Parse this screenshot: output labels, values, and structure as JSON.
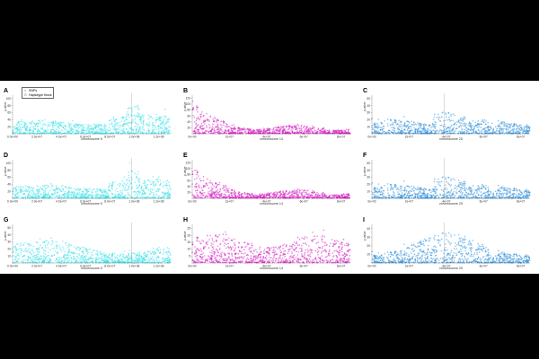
{
  "figure": {
    "legend": {
      "items": [
        {
          "label": "SNPs",
          "symbol": "circle"
        },
        {
          "label": "Haplotype block",
          "symbol": "triangle"
        }
      ]
    }
  },
  "chart_data": [
    {
      "letter": "A",
      "type": "scatter",
      "color": "#33e0e6",
      "ylabel": "p-value",
      "xlabel": "chromosome 5",
      "xticks": [
        "0.0e+00",
        "2.0e+07",
        "4.0e+07",
        "6.0e+07",
        "8.0e+07",
        "1.0e+08",
        "1.2e+08"
      ],
      "xtick_values": [
        0,
        20000000,
        40000000,
        60000000,
        80000000,
        100000000,
        120000000
      ],
      "xlim": [
        0,
        130000000
      ],
      "yticks": [
        "20",
        "40",
        "60",
        "80",
        "100"
      ],
      "ytick_values": [
        20,
        40,
        60,
        80,
        100
      ],
      "ylim": [
        0,
        110
      ],
      "profile": "right_peak",
      "threshold_x": 98000000,
      "show_legend": true
    },
    {
      "letter": "B",
      "type": "scatter",
      "color": "#d61ec2",
      "ylabel": "p-value",
      "xlabel": "chromosome 14",
      "xticks": [
        "0e+00",
        "2e+07",
        "4e+07",
        "6e+07",
        "8e+07"
      ],
      "xtick_values": [
        0,
        20000000,
        40000000,
        60000000,
        80000000
      ],
      "xlim": [
        0,
        85000000
      ],
      "yticks": [
        "20",
        "40",
        "60",
        "80",
        "100",
        "120"
      ],
      "ytick_values": [
        20,
        40,
        60,
        80,
        100,
        120
      ],
      "ylim": [
        0,
        130
      ],
      "profile": "left_decay",
      "threshold_x": null,
      "show_legend": false
    },
    {
      "letter": "C",
      "type": "scatter",
      "color": "#2f8fd8",
      "ylabel": "p-value",
      "xlabel": "chromosome 25",
      "xticks": [
        "0e+00",
        "2e+07",
        "4e+07",
        "6e+07",
        "8e+07"
      ],
      "xtick_values": [
        0,
        20000000,
        40000000,
        60000000,
        80000000
      ],
      "xlim": [
        0,
        85000000
      ],
      "yticks": [
        "10",
        "20",
        "30",
        "40",
        "50"
      ],
      "ytick_values": [
        10,
        20,
        30,
        40,
        50
      ],
      "ylim": [
        0,
        55
      ],
      "profile": "mid_peak",
      "threshold_x": 39000000,
      "show_legend": false
    },
    {
      "letter": "D",
      "type": "scatter",
      "color": "#33e0e6",
      "ylabel": "p-value",
      "xlabel": "chromosome 5",
      "xticks": [
        "0.0e+00",
        "2.0e+07",
        "4.0e+07",
        "6.0e+07",
        "8.0e+07",
        "1.0e+08",
        "1.2e+08"
      ],
      "xtick_values": [
        0,
        20000000,
        40000000,
        60000000,
        80000000,
        100000000,
        120000000
      ],
      "xlim": [
        0,
        130000000
      ],
      "yticks": [
        "20",
        "40",
        "60",
        "80",
        "100"
      ],
      "ytick_values": [
        20,
        40,
        60,
        80,
        100
      ],
      "ylim": [
        0,
        110
      ],
      "profile": "right_peak",
      "threshold_x": 98000000,
      "show_legend": false
    },
    {
      "letter": "E",
      "type": "scatter",
      "color": "#d61ec2",
      "ylabel": "p-value",
      "xlabel": "chromosome 14",
      "xticks": [
        "0e+00",
        "2e+07",
        "4e+07",
        "6e+07",
        "8e+07"
      ],
      "xtick_values": [
        0,
        20000000,
        40000000,
        60000000,
        80000000
      ],
      "xlim": [
        0,
        85000000
      ],
      "yticks": [
        "20",
        "40",
        "60",
        "80",
        "100",
        "120"
      ],
      "ytick_values": [
        20,
        40,
        60,
        80,
        100,
        120
      ],
      "ylim": [
        0,
        130
      ],
      "profile": "left_decay",
      "threshold_x": null,
      "show_legend": false
    },
    {
      "letter": "F",
      "type": "scatter",
      "color": "#2f8fd8",
      "ylabel": "p-value",
      "xlabel": "chromosome 25",
      "xticks": [
        "0e+00",
        "2e+07",
        "4e+07",
        "6e+07",
        "8e+07"
      ],
      "xtick_values": [
        0,
        20000000,
        40000000,
        60000000,
        80000000
      ],
      "xlim": [
        0,
        85000000
      ],
      "yticks": [
        "10",
        "20",
        "30",
        "40",
        "50"
      ],
      "ytick_values": [
        10,
        20,
        30,
        40,
        50
      ],
      "ylim": [
        0,
        55
      ],
      "profile": "mid_peak",
      "threshold_x": 39000000,
      "show_legend": false
    },
    {
      "letter": "G",
      "type": "scatter",
      "color": "#33e0e6",
      "ylabel": "p-value",
      "xlabel": "chromosome 5",
      "xticks": [
        "0.0e+00",
        "2.0e+07",
        "4.0e+07",
        "6.0e+07",
        "8.0e+07",
        "1.0e+08",
        "1.2e+08"
      ],
      "xtick_values": [
        0,
        20000000,
        40000000,
        60000000,
        80000000,
        100000000,
        120000000
      ],
      "xlim": [
        0,
        130000000
      ],
      "yticks": [
        "10",
        "20",
        "30",
        "40",
        "50"
      ],
      "ytick_values": [
        10,
        20,
        30,
        40,
        50
      ],
      "ylim": [
        0,
        55
      ],
      "profile": "flat_high",
      "threshold_x": 98000000,
      "show_legend": false
    },
    {
      "letter": "H",
      "type": "scatter",
      "color": "#d61ec2",
      "ylabel": "p-value",
      "xlabel": "chromosome 14",
      "xticks": [
        "0e+00",
        "2e+07",
        "4e+07",
        "6e+07",
        "8e+07"
      ],
      "xtick_values": [
        0,
        20000000,
        40000000,
        60000000,
        80000000
      ],
      "xlim": [
        0,
        85000000
      ],
      "yticks": [
        "5",
        "10",
        "15",
        "20",
        "25"
      ],
      "ytick_values": [
        5,
        10,
        15,
        20,
        25
      ],
      "ylim": [
        0,
        28
      ],
      "profile": "flat_dense",
      "threshold_x": null,
      "show_legend": false
    },
    {
      "letter": "I",
      "type": "scatter",
      "color": "#2f8fd8",
      "ylabel": "p-value",
      "xlabel": "chromosome 25",
      "xticks": [
        "0e+00",
        "2e+07",
        "4e+07",
        "6e+07",
        "8e+07"
      ],
      "xtick_values": [
        0,
        20000000,
        40000000,
        60000000,
        80000000
      ],
      "xlim": [
        0,
        85000000
      ],
      "yticks": [
        "10",
        "20",
        "30",
        "40"
      ],
      "ytick_values": [
        10,
        20,
        30,
        40
      ],
      "ylim": [
        0,
        45
      ],
      "profile": "mid_hump",
      "threshold_x": 39000000,
      "show_legend": false
    }
  ]
}
